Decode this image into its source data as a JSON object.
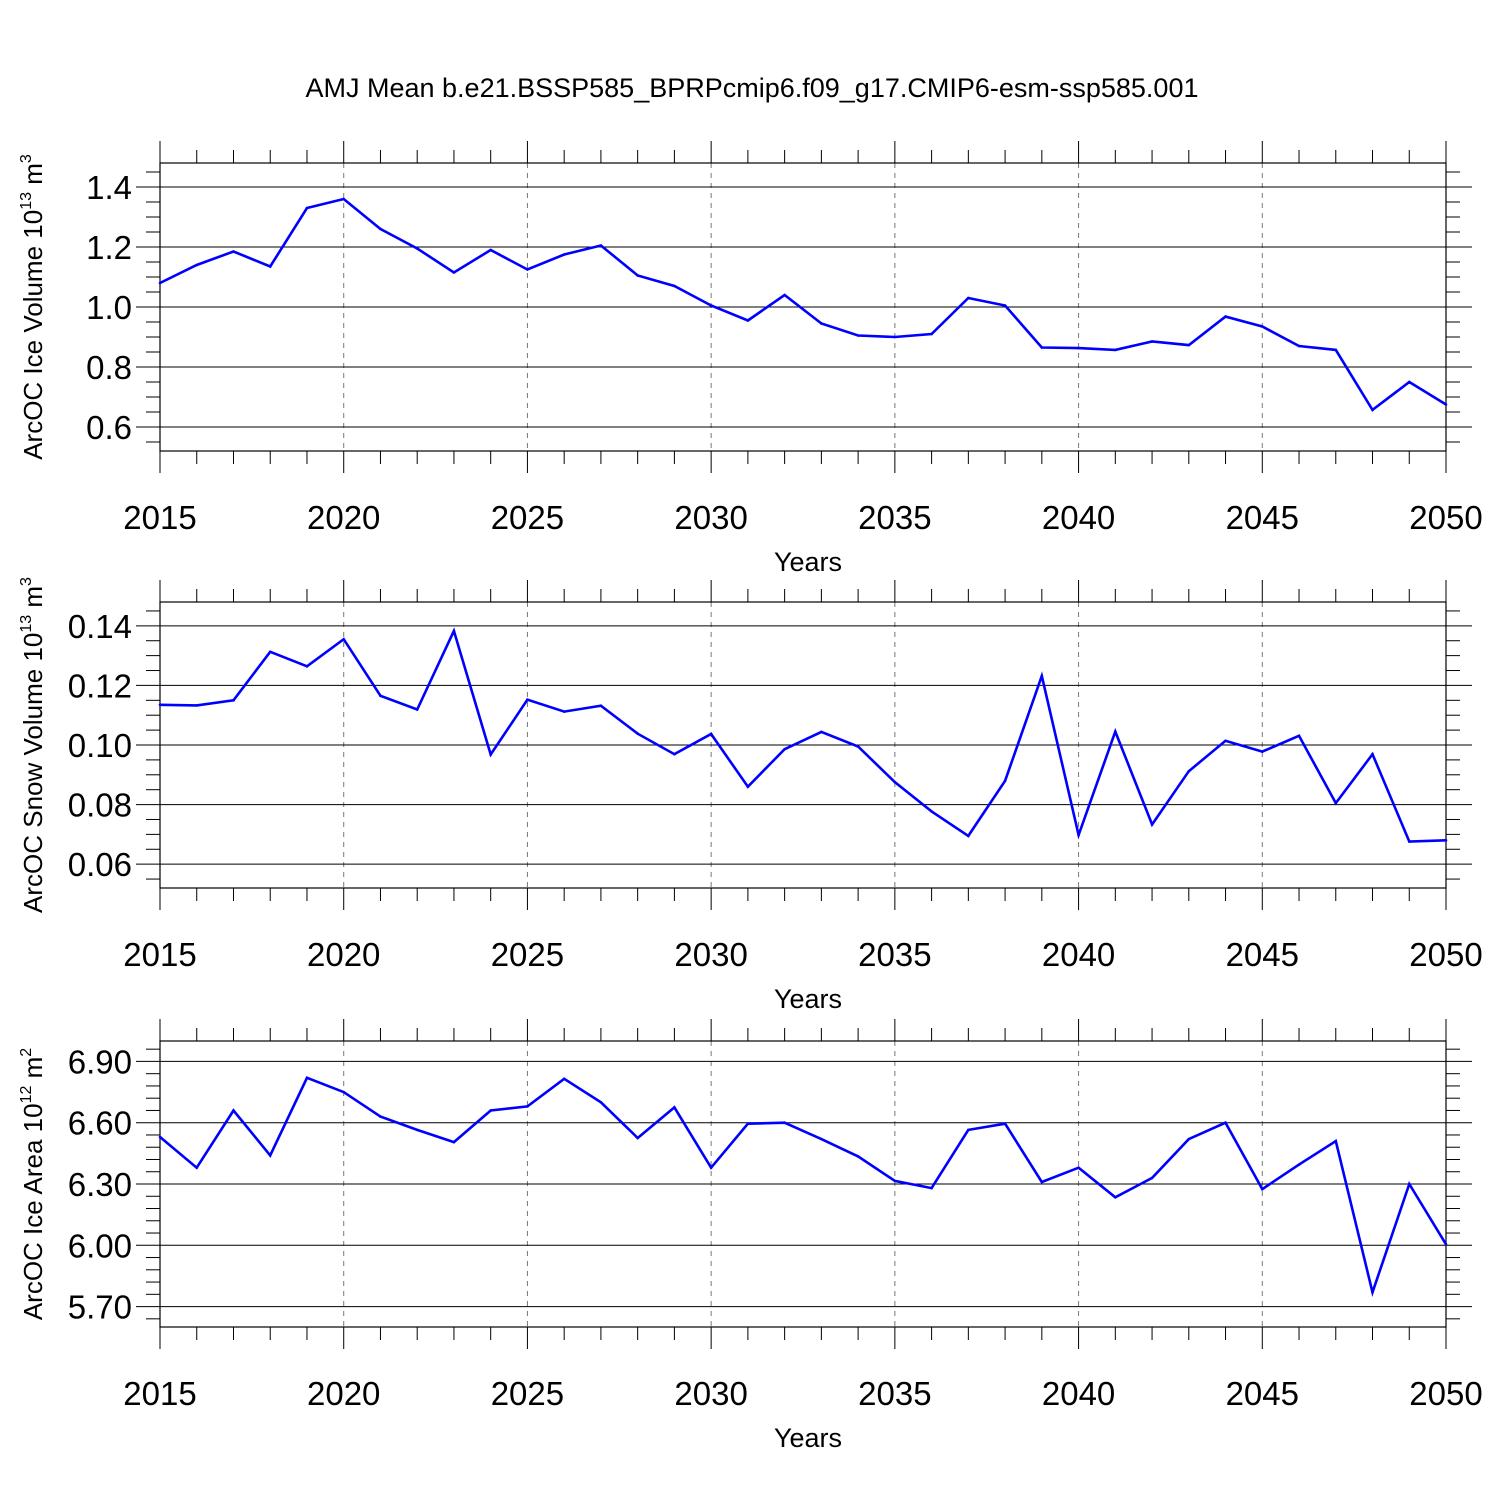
{
  "title": "AMJ Mean b.e21.BSSP585_BPRPcmip6.f09_g17.CMIP6-esm-ssp585.001",
  "line_color": "#0000ff",
  "chart_data": [
    {
      "type": "line",
      "xlabel": "Years",
      "ylabel": {
        "prefix": "ArcOC Ice Volume 10",
        "exp": "13",
        "unit": " m",
        "unit_exp": "3"
      },
      "xlim": [
        2015,
        2050
      ],
      "ylim": [
        0.52,
        1.48
      ],
      "xticks": [
        "2015",
        "2020",
        "2025",
        "2030",
        "2035",
        "2040",
        "2045",
        "2050"
      ],
      "yticks": [
        "0.6",
        "0.8",
        "1.0",
        "1.2",
        "1.4"
      ],
      "ytick_values": [
        0.6,
        0.8,
        1.0,
        1.2,
        1.4
      ],
      "grid": "dashed vertical lines at labeled x ticks",
      "x": [
        2015,
        2016,
        2017,
        2018,
        2019,
        2020,
        2021,
        2022,
        2023,
        2024,
        2025,
        2026,
        2027,
        2028,
        2029,
        2030,
        2031,
        2032,
        2033,
        2034,
        2035,
        2036,
        2037,
        2038,
        2039,
        2040,
        2041,
        2042,
        2043,
        2044,
        2045,
        2046,
        2047,
        2048,
        2049,
        2050
      ],
      "values": [
        1.08,
        1.14,
        1.185,
        1.135,
        1.33,
        1.36,
        1.26,
        1.195,
        1.115,
        1.19,
        1.125,
        1.175,
        1.205,
        1.105,
        1.07,
        1.005,
        0.955,
        1.04,
        0.945,
        0.905,
        0.9,
        0.91,
        1.03,
        1.005,
        0.865,
        0.863,
        0.857,
        0.885,
        0.873,
        0.968,
        0.935,
        0.87,
        0.857,
        0.657,
        0.75,
        0.675
      ]
    },
    {
      "type": "line",
      "xlabel": "Years",
      "ylabel": {
        "prefix": "ArcOC Snow Volume 10",
        "exp": "13",
        "unit": " m",
        "unit_exp": "3"
      },
      "xlim": [
        2015,
        2050
      ],
      "ylim": [
        0.052,
        0.148
      ],
      "xticks": [
        "2015",
        "2020",
        "2025",
        "2030",
        "2035",
        "2040",
        "2045",
        "2050"
      ],
      "yticks": [
        "0.06",
        "0.08",
        "0.10",
        "0.12",
        "0.14"
      ],
      "ytick_values": [
        0.06,
        0.08,
        0.1,
        0.12,
        0.14
      ],
      "grid": "dashed vertical lines at labeled x ticks",
      "x": [
        2015,
        2016,
        2017,
        2018,
        2019,
        2020,
        2021,
        2022,
        2023,
        2024,
        2025,
        2026,
        2027,
        2028,
        2029,
        2030,
        2031,
        2032,
        2033,
        2034,
        2035,
        2036,
        2037,
        2038,
        2039,
        2040,
        2041,
        2042,
        2043,
        2044,
        2045,
        2046,
        2047,
        2048,
        2049,
        2050
      ],
      "values": [
        0.1135,
        0.1133,
        0.115,
        0.1313,
        0.1264,
        0.1355,
        0.1165,
        0.1119,
        0.1383,
        0.0968,
        0.1152,
        0.1112,
        0.1132,
        0.1038,
        0.0969,
        0.1037,
        0.086,
        0.0986,
        0.1044,
        0.0995,
        0.0875,
        0.0777,
        0.0695,
        0.088,
        0.1232,
        0.0698,
        0.1045,
        0.0733,
        0.0912,
        0.1014,
        0.0978,
        0.1031,
        0.0805,
        0.0969,
        0.0676,
        0.068
      ]
    },
    {
      "type": "line",
      "xlabel": "Years",
      "ylabel": {
        "prefix": "ArcOC Ice Area 10",
        "exp": "12",
        "unit": " m",
        "unit_exp": "2"
      },
      "xlim": [
        2015,
        2050
      ],
      "ylim": [
        5.6,
        7.0
      ],
      "xticks": [
        "2015",
        "2020",
        "2025",
        "2030",
        "2035",
        "2040",
        "2045",
        "2050"
      ],
      "yticks": [
        "5.70",
        "6.00",
        "6.30",
        "6.60",
        "6.90"
      ],
      "ytick_values": [
        5.7,
        6.0,
        6.3,
        6.6,
        6.9
      ],
      "grid": "dashed vertical lines at labeled x ticks",
      "x": [
        2015,
        2016,
        2017,
        2018,
        2019,
        2020,
        2021,
        2022,
        2023,
        2024,
        2025,
        2026,
        2027,
        2028,
        2029,
        2030,
        2031,
        2032,
        2033,
        2034,
        2035,
        2036,
        2037,
        2038,
        2039,
        2040,
        2041,
        2042,
        2043,
        2044,
        2045,
        2046,
        2047,
        2048,
        2049,
        2050
      ],
      "values": [
        6.53,
        6.38,
        6.66,
        6.44,
        6.82,
        6.75,
        6.63,
        6.565,
        6.505,
        6.66,
        6.68,
        6.815,
        6.7,
        6.525,
        6.675,
        6.38,
        6.595,
        6.6,
        6.52,
        6.435,
        6.315,
        6.28,
        6.565,
        6.595,
        6.31,
        6.38,
        6.235,
        6.33,
        6.52,
        6.6,
        6.275,
        6.395,
        6.51,
        5.77,
        6.3,
        6.005
      ]
    }
  ]
}
